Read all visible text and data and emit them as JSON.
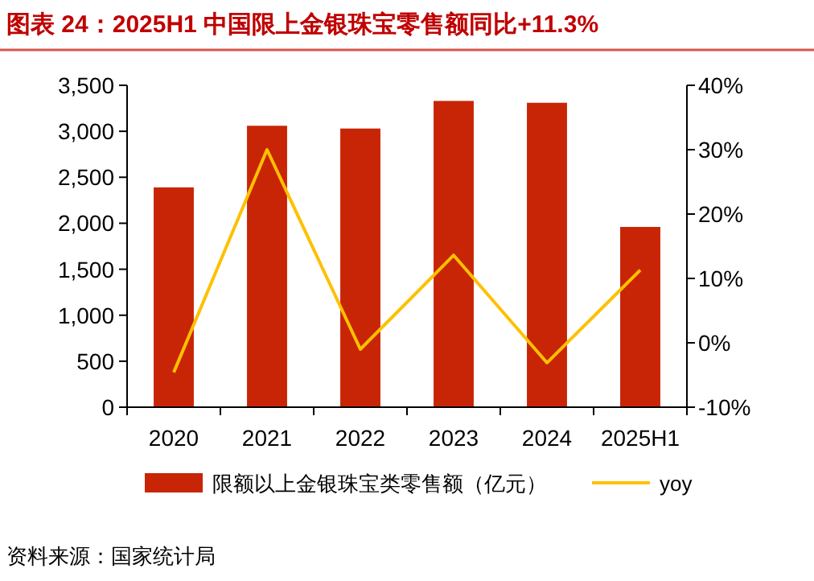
{
  "chart_data": {
    "type": "bar",
    "title": "图表 24：2025H1 中国限上金银珠宝零售额同比+11.3%",
    "categories": [
      "2020",
      "2021",
      "2022",
      "2023",
      "2024",
      "2025H1"
    ],
    "series": [
      {
        "name": "限额以上金银珠宝类零售额（亿元）",
        "color": "#c82506",
        "values": [
          2390,
          3060,
          3030,
          3330,
          3310,
          1960
        ]
      },
      {
        "name": "yoy",
        "type": "line",
        "axis": "y2",
        "color": "#ffc000",
        "values": [
          -4.6,
          30.0,
          -1.0,
          13.6,
          -3.1,
          11.3
        ]
      }
    ],
    "ylim": [
      0,
      3500
    ],
    "yticks": [
      {
        "value": 0,
        "label": "0"
      },
      {
        "value": 500,
        "label": "500"
      },
      {
        "value": 1000,
        "label": "1,000"
      },
      {
        "value": 1500,
        "label": "1,500"
      },
      {
        "value": 2000,
        "label": "2,000"
      },
      {
        "value": 2500,
        "label": "2,500"
      },
      {
        "value": 3000,
        "label": "3,000"
      },
      {
        "value": 3500,
        "label": "3,500"
      }
    ],
    "y2lim": [
      -10,
      40
    ],
    "y2ticks": [
      {
        "value": -10,
        "label": "-10%"
      },
      {
        "value": 0,
        "label": "0%"
      },
      {
        "value": 10,
        "label": "10%"
      },
      {
        "value": 20,
        "label": "20%"
      },
      {
        "value": 30,
        "label": "30%"
      },
      {
        "value": 40,
        "label": "40%"
      }
    ],
    "legend": "bottom",
    "grid": false,
    "annotations": [
      "资料来源：国家统计局"
    ]
  }
}
